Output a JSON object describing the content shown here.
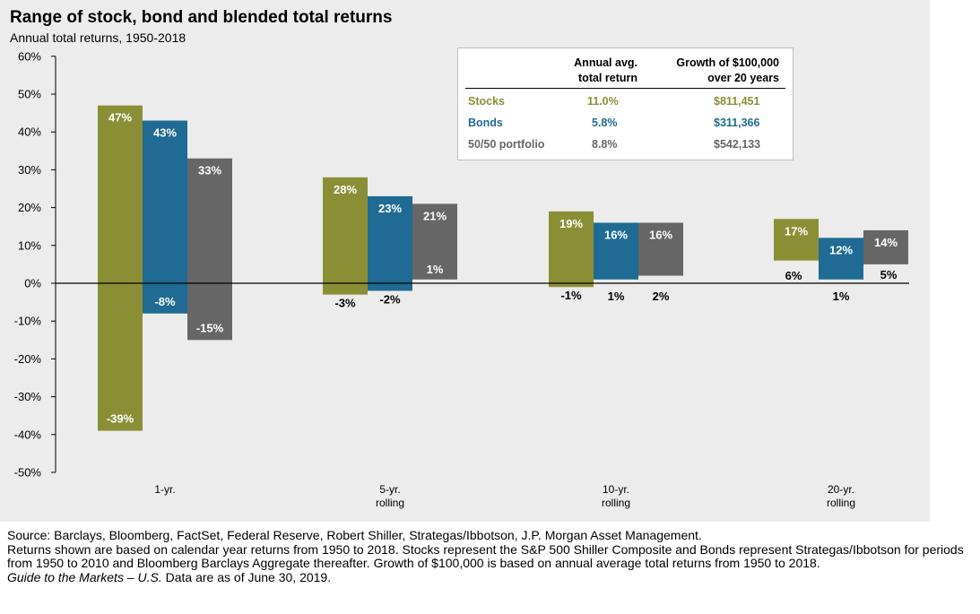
{
  "chart_data": {
    "type": "floating-bar",
    "title": "Range of stock, bond and blended total returns",
    "subtitle": "Annual total returns, 1950-2018",
    "ylim": [
      -50,
      60
    ],
    "yticks": [
      -50,
      -40,
      -30,
      -20,
      -10,
      0,
      10,
      20,
      30,
      40,
      50,
      60
    ],
    "ytick_labels": [
      "-50%",
      "-40%",
      "-30%",
      "-20%",
      "-10%",
      "0%",
      "10%",
      "20%",
      "30%",
      "40%",
      "50%",
      "60%"
    ],
    "categories": [
      [
        "1-yr."
      ],
      [
        "5-yr.",
        "rolling"
      ],
      [
        "10-yr.",
        "rolling"
      ],
      [
        "20-yr.",
        "rolling"
      ]
    ],
    "series": [
      {
        "name": "Stocks",
        "color": "#8a8f35",
        "high": [
          47,
          28,
          19,
          17
        ],
        "low": [
          -39,
          -3,
          -1,
          6
        ],
        "high_labels": [
          "47%",
          "28%",
          "19%",
          "17%"
        ],
        "low_labels": [
          "-39%",
          "-3%",
          "-1%",
          "6%"
        ]
      },
      {
        "name": "Bonds",
        "color": "#1f6b94",
        "high": [
          43,
          23,
          16,
          12
        ],
        "low": [
          -8,
          -2,
          1,
          1
        ],
        "high_labels": [
          "43%",
          "23%",
          "16%",
          "12%"
        ],
        "low_labels": [
          "-8%",
          "-2%",
          "1%",
          "1%"
        ]
      },
      {
        "name": "50/50 portfolio",
        "color": "#666666",
        "high": [
          33,
          21,
          16,
          14
        ],
        "low": [
          -15,
          1,
          2,
          5
        ],
        "high_labels": [
          "33%",
          "21%",
          "16%",
          "14%"
        ],
        "low_labels": [
          "-15%",
          "1%",
          "2%",
          "5%"
        ]
      }
    ],
    "grid": false
  },
  "summary_table": {
    "col1_header": [
      "Annual avg.",
      "total return"
    ],
    "col2_header": [
      "Growth of $100,000",
      "over 20 years"
    ],
    "rows": [
      {
        "label": "Stocks",
        "avg": "11.0%",
        "growth": "$811,451",
        "color": "#8a8f35"
      },
      {
        "label": "Bonds",
        "avg": "5.8%",
        "growth": "$311,366",
        "color": "#1f6b94"
      },
      {
        "label": "50/50 portfolio",
        "avg": "8.8%",
        "growth": "$542,133",
        "color": "#666666"
      }
    ]
  },
  "footer": {
    "source": "Source: Barclays, Bloomberg, FactSet, Federal Reserve, Robert Shiller, Strategas/Ibbotson, J.P. Morgan Asset Management.",
    "note": "Returns shown are based on calendar year returns from 1950 to 2018. Stocks represent the S&P 500 Shiller Composite and Bonds represent Strategas/Ibbotson for periods from 1950 to 2010 and Bloomberg Barclays Aggregate thereafter. Growth of $100,000 is based on annual average total returns from 1950 to 2018.",
    "guide_italic": "Guide to the Markets – U.S.",
    "date": " Data are as of June 30, 2019."
  }
}
